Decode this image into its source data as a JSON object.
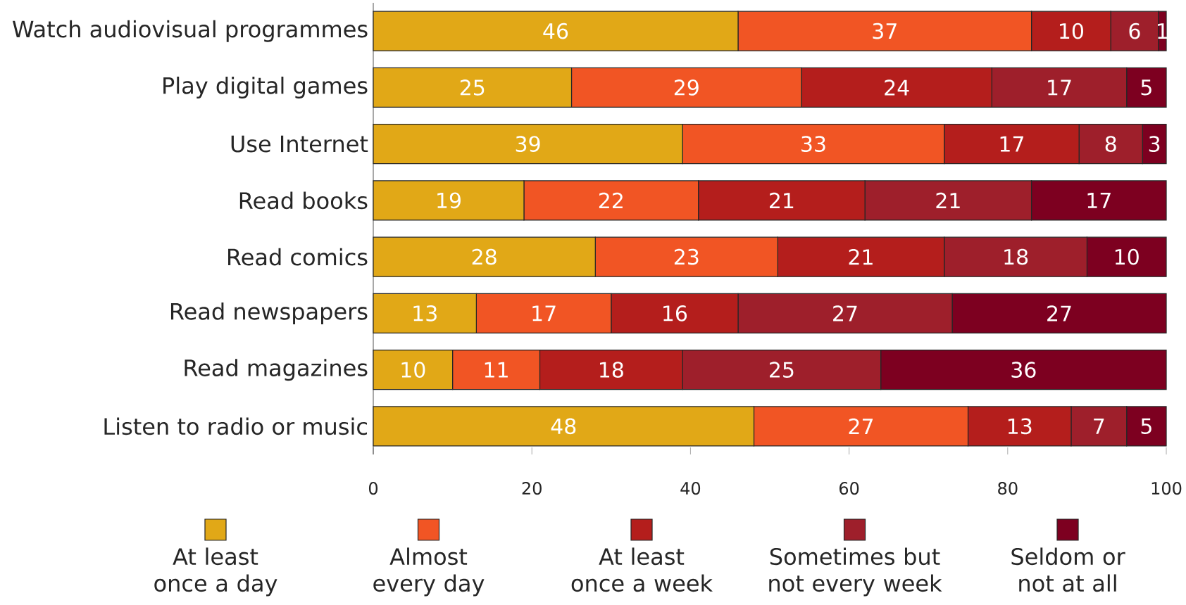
{
  "chart_data": {
    "type": "bar",
    "orientation": "horizontal",
    "stacked": true,
    "categories": [
      "Watch audiovisual programmes",
      "Play digital games",
      "Use Internet",
      "Read books",
      "Read comics",
      "Read newspapers",
      "Read magazines",
      "Listen to radio or music"
    ],
    "series": [
      {
        "name": "At least once a day",
        "color": "#e1a817",
        "values": [
          46,
          25,
          39,
          19,
          28,
          13,
          10,
          48
        ]
      },
      {
        "name": "Almost every day",
        "color": "#f15524",
        "values": [
          37,
          29,
          33,
          22,
          23,
          17,
          11,
          27
        ]
      },
      {
        "name": "At least once a week",
        "color": "#b41e1c",
        "values": [
          10,
          24,
          17,
          21,
          21,
          16,
          18,
          13
        ]
      },
      {
        "name": "Sometimes but not every week",
        "color": "#9e1f2b",
        "values": [
          6,
          17,
          8,
          21,
          18,
          27,
          25,
          7
        ]
      },
      {
        "name": "Seldom or not at all",
        "color": "#7d0020",
        "values": [
          1,
          5,
          3,
          17,
          10,
          27,
          36,
          5
        ]
      }
    ],
    "xlim": [
      0,
      100
    ],
    "xticks": [
      0,
      20,
      40,
      60,
      80,
      100
    ],
    "data_labels": true,
    "legend": "bottom"
  }
}
